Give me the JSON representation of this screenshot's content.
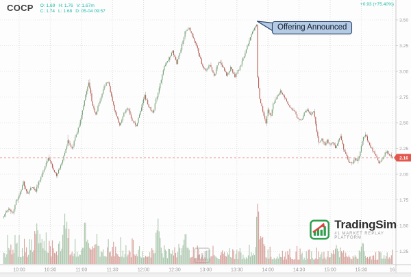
{
  "header": {
    "symbol": "COCP",
    "ohlc_line1": [
      "O: 1.69",
      "H: 1.76",
      "V: 1.67m"
    ],
    "ohlc_line2": [
      "C: 1.74",
      "L: 1.68",
      "D: 05-04 09:57"
    ],
    "change": "+0.93 (+75.40%)"
  },
  "annotation": {
    "text": "Offering Announced"
  },
  "price_axis": {
    "labels": [
      "3.50",
      "3.25",
      "3.00",
      "2.75",
      "2.50",
      "2.25",
      "2.00",
      "1.75",
      "1.50",
      "1.25"
    ],
    "current_price": "2.16"
  },
  "time_axis": {
    "labels": [
      "10:00",
      "10:30",
      "11:00",
      "11:30",
      "12:00",
      "12:30",
      "13:00",
      "13:30",
      "14:00",
      "14:30",
      "15:00",
      "15:30",
      "16"
    ]
  },
  "logo": {
    "name": "TradingSim",
    "tagline": "#1 MARKET REPLAY PLATFORM"
  },
  "colors": {
    "up": "#6aa06c",
    "down": "#bf584e",
    "wick": "#9b9b9b",
    "teal": "#1db9a8",
    "tag_bg": "#e2574b",
    "current_line": "#ef8f86",
    "grid_v": "#dcdcdc",
    "grid_h": "#e9e9e9",
    "axis_line": "#c9c9c9",
    "axis_text": "#999999",
    "annotation_bg": "#b5cbe4",
    "annotation_border": "#24406a",
    "brand_green": "#2f9e4f",
    "brand_red": "#d9453a",
    "volume_up": "#8fb491",
    "volume_down": "#c98078"
  },
  "chart_data": {
    "type": "candlestick",
    "symbol": "COCP",
    "interval": "1m",
    "session": {
      "start": "09:45",
      "end": "16:00"
    },
    "price_ticks": [
      3.5,
      3.25,
      3.0,
      2.75,
      2.5,
      2.25,
      2.0,
      1.75,
      1.5,
      1.25
    ],
    "time_ticks": [
      "10:00",
      "10:30",
      "11:00",
      "11:30",
      "12:00",
      "12:30",
      "13:00",
      "13:30",
      "14:00",
      "14:30",
      "15:00",
      "15:30",
      "16"
    ],
    "ylim": [
      1.2,
      3.55
    ],
    "last_price": 2.16,
    "change_abs": 0.93,
    "change_pct": 75.4,
    "hovered_bar": {
      "time": "05-04 09:57",
      "open": 1.69,
      "high": 1.76,
      "low": 1.68,
      "close": 1.74,
      "volume": "1.67m"
    },
    "event": {
      "time": "13:50",
      "label": "Offering Announced",
      "from_price": 3.46,
      "to_price": 2.95
    },
    "path_anchors": [
      [
        "09:45",
        1.6
      ],
      [
        "09:50",
        1.66
      ],
      [
        "09:54",
        1.63
      ],
      [
        "09:57",
        1.74
      ],
      [
        "10:00",
        1.79
      ],
      [
        "10:04",
        1.92
      ],
      [
        "10:08",
        1.8
      ],
      [
        "10:12",
        1.88
      ],
      [
        "10:16",
        1.84
      ],
      [
        "10:20",
        1.95
      ],
      [
        "10:24",
        2.04
      ],
      [
        "10:28",
        2.16
      ],
      [
        "10:32",
        2.07
      ],
      [
        "10:36",
        1.99
      ],
      [
        "10:40",
        2.08
      ],
      [
        "10:44",
        2.2
      ],
      [
        "10:47",
        2.32
      ],
      [
        "10:51",
        2.25
      ],
      [
        "10:55",
        2.38
      ],
      [
        "10:59",
        2.52
      ],
      [
        "11:03",
        2.72
      ],
      [
        "11:07",
        2.9
      ],
      [
        "11:11",
        2.66
      ],
      [
        "11:14",
        2.59
      ],
      [
        "11:18",
        2.72
      ],
      [
        "11:22",
        2.86
      ],
      [
        "11:26",
        2.9
      ],
      [
        "11:30",
        2.7
      ],
      [
        "11:34",
        2.56
      ],
      [
        "11:37",
        2.48
      ],
      [
        "11:41",
        2.59
      ],
      [
        "11:45",
        2.64
      ],
      [
        "11:49",
        2.52
      ],
      [
        "11:53",
        2.46
      ],
      [
        "11:57",
        2.62
      ],
      [
        "12:01",
        2.76
      ],
      [
        "12:05",
        2.66
      ],
      [
        "12:09",
        2.6
      ],
      [
        "12:13",
        2.76
      ],
      [
        "12:17",
        2.92
      ],
      [
        "12:20",
        3.05
      ],
      [
        "12:24",
        3.12
      ],
      [
        "12:28",
        3.2
      ],
      [
        "12:32",
        3.07
      ],
      [
        "12:36",
        3.22
      ],
      [
        "12:40",
        3.38
      ],
      [
        "12:44",
        3.42
      ],
      [
        "12:48",
        3.32
      ],
      [
        "12:52",
        3.22
      ],
      [
        "12:56",
        3.08
      ],
      [
        "13:00",
        3.0
      ],
      [
        "13:04",
        3.07
      ],
      [
        "13:08",
        2.95
      ],
      [
        "13:12",
        3.09
      ],
      [
        "13:16",
        3.05
      ],
      [
        "13:20",
        2.96
      ],
      [
        "13:24",
        3.03
      ],
      [
        "13:28",
        2.95
      ],
      [
        "13:32",
        3.02
      ],
      [
        "13:36",
        3.12
      ],
      [
        "13:40",
        3.25
      ],
      [
        "13:44",
        3.36
      ],
      [
        "13:48",
        3.44
      ],
      [
        "13:49",
        3.46
      ],
      [
        "13:50",
        2.95
      ],
      [
        "13:52",
        2.74
      ],
      [
        "13:55",
        2.61
      ],
      [
        "13:58",
        2.5
      ],
      [
        "14:00",
        2.62
      ],
      [
        "14:03",
        2.56
      ],
      [
        "14:05",
        2.68
      ],
      [
        "14:08",
        2.74
      ],
      [
        "14:12",
        2.81
      ],
      [
        "14:15",
        2.77
      ],
      [
        "14:18",
        2.71
      ],
      [
        "14:22",
        2.64
      ],
      [
        "14:25",
        2.62
      ],
      [
        "14:28",
        2.55
      ],
      [
        "14:32",
        2.52
      ],
      [
        "14:35",
        2.59
      ],
      [
        "14:38",
        2.63
      ],
      [
        "14:41",
        2.58
      ],
      [
        "14:44",
        2.61
      ],
      [
        "14:47",
        2.42
      ],
      [
        "14:49",
        2.31
      ],
      [
        "14:52",
        2.34
      ],
      [
        "14:55",
        2.28
      ],
      [
        "14:57",
        2.33
      ],
      [
        "15:00",
        2.28
      ],
      [
        "15:03",
        2.31
      ],
      [
        "15:05",
        2.26
      ],
      [
        "15:08",
        2.33
      ],
      [
        "15:10",
        2.37
      ],
      [
        "15:13",
        2.25
      ],
      [
        "15:16",
        2.17
      ],
      [
        "15:18",
        2.12
      ],
      [
        "15:21",
        2.1
      ],
      [
        "15:24",
        2.15
      ],
      [
        "15:26",
        2.12
      ],
      [
        "15:29",
        2.21
      ],
      [
        "15:31",
        2.33
      ],
      [
        "15:34",
        2.39
      ],
      [
        "15:37",
        2.31
      ],
      [
        "15:39",
        2.26
      ],
      [
        "15:42",
        2.22
      ],
      [
        "15:45",
        2.16
      ],
      [
        "15:47",
        2.11
      ],
      [
        "15:50",
        2.14
      ],
      [
        "15:53",
        2.2
      ],
      [
        "15:55",
        2.22
      ],
      [
        "15:58",
        2.18
      ],
      [
        "16:00",
        2.16
      ]
    ],
    "volume_spikes": [
      {
        "t": "10:20",
        "h": 20,
        "w": 5
      },
      {
        "t": "10:44",
        "h": 36,
        "w": 3
      },
      {
        "t": "11:05",
        "h": 24,
        "w": 4
      },
      {
        "t": "12:14",
        "h": 34,
        "w": 2.5
      },
      {
        "t": "12:40",
        "h": 20,
        "w": 3
      },
      {
        "t": "13:50",
        "h": 72,
        "w": 1.3
      },
      {
        "t": "13:53",
        "h": 32,
        "w": 3
      },
      {
        "t": "15:05",
        "h": 12,
        "w": 4
      },
      {
        "t": "15:31",
        "h": 18,
        "w": 2.5
      }
    ],
    "seed": 7
  }
}
